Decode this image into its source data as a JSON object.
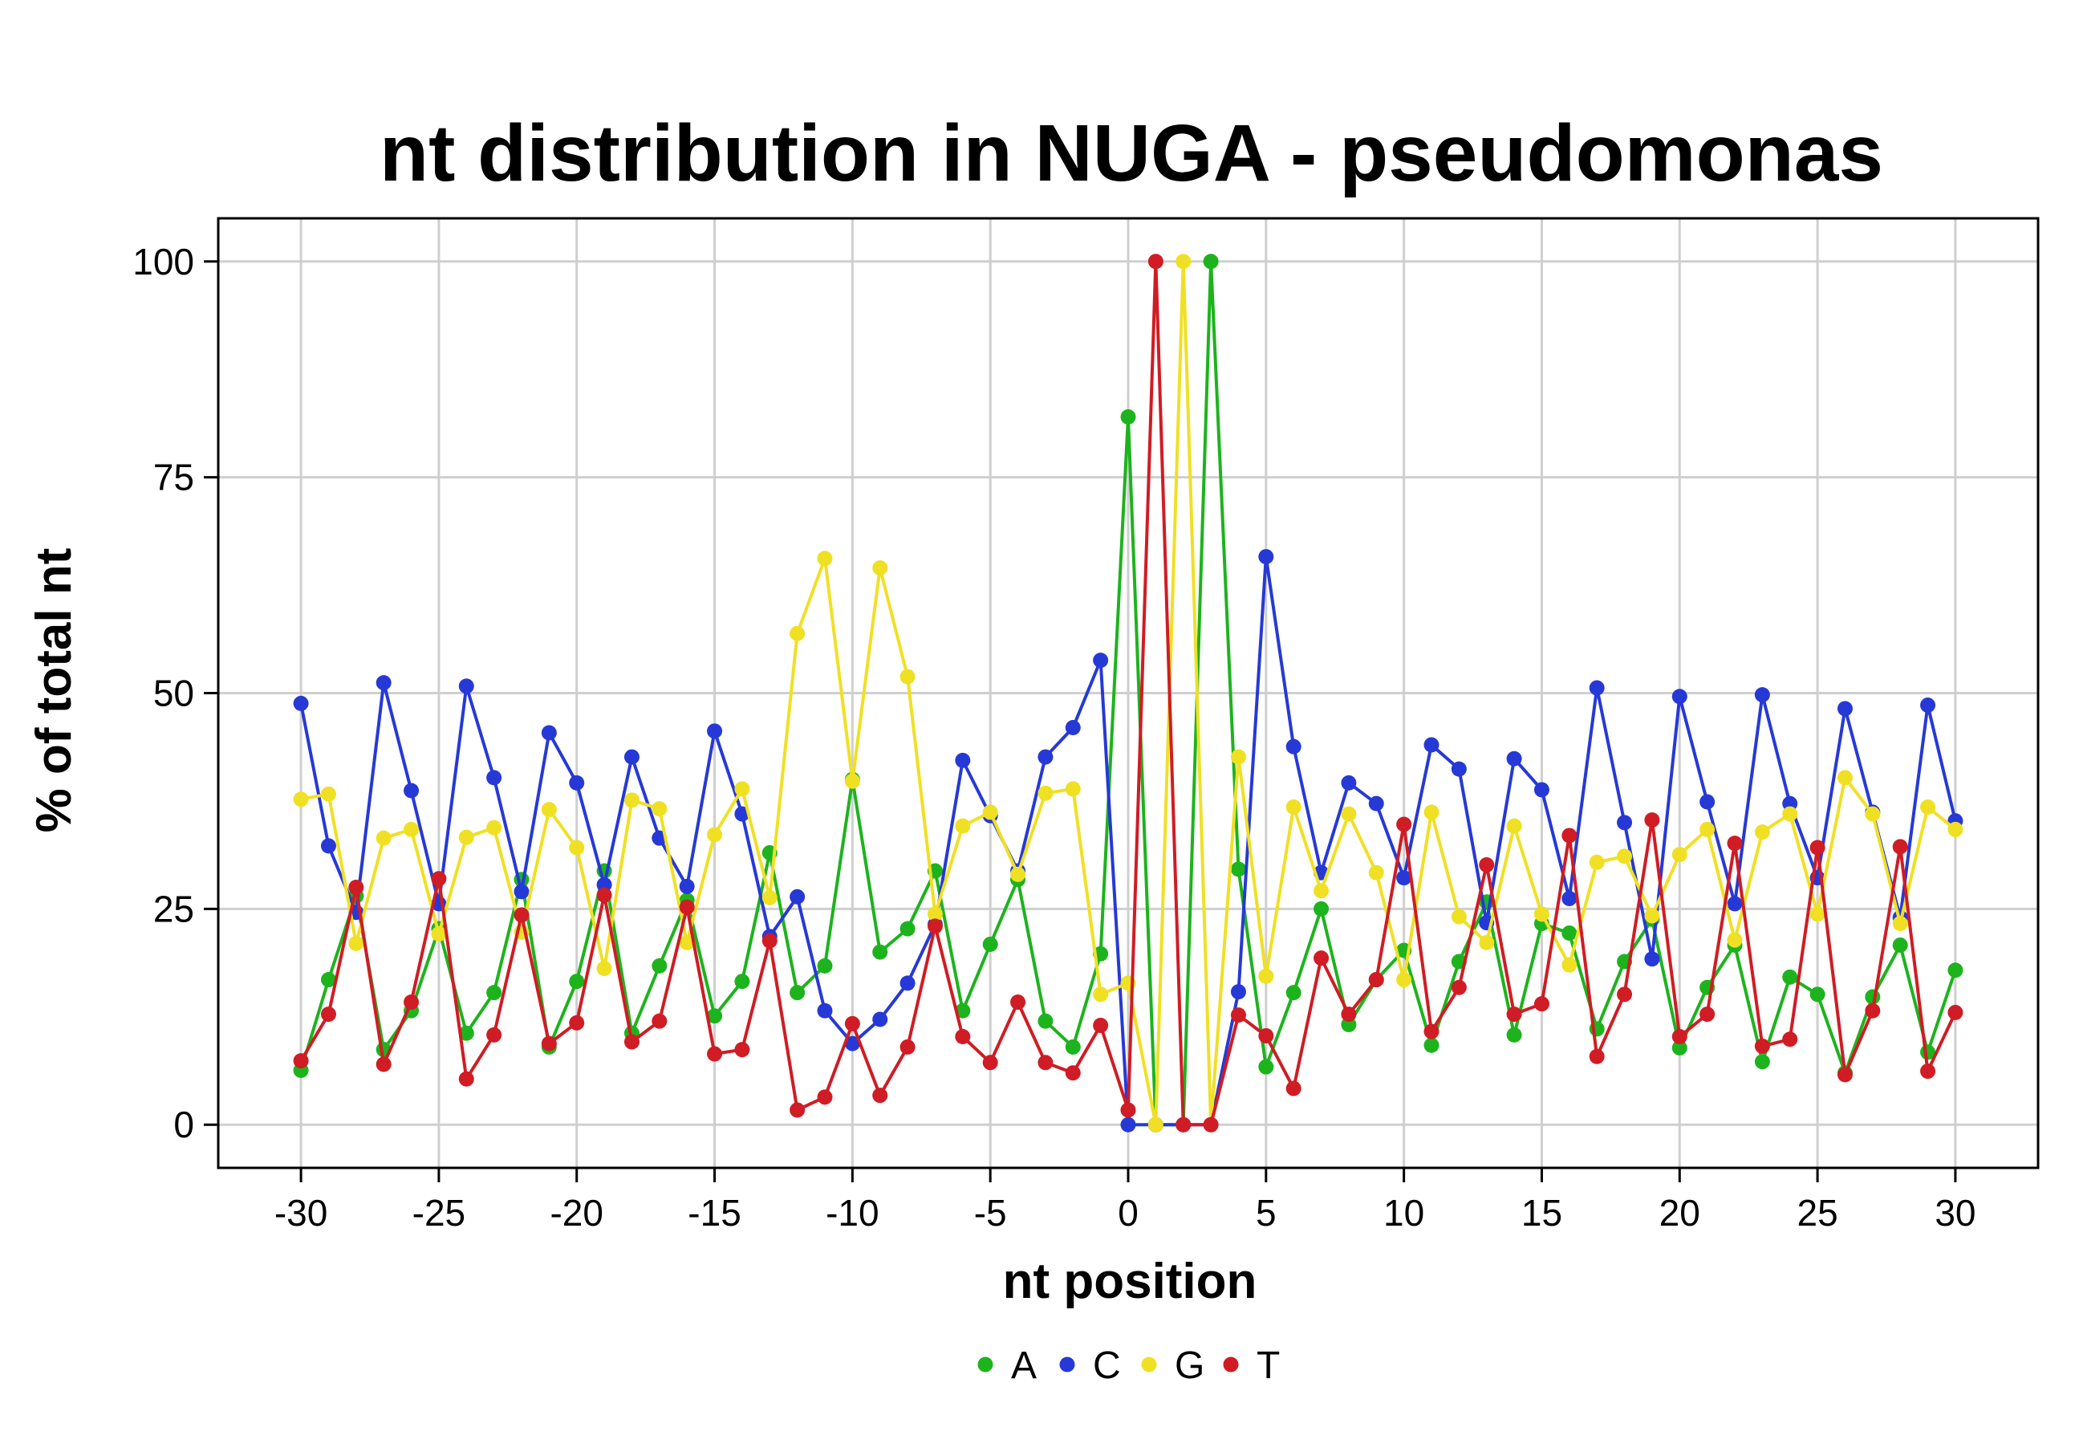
{
  "chart_data": {
    "type": "line",
    "title": "nt distribution in NUGA - pseudomonas",
    "xlabel": "nt position",
    "ylabel": "% of total nt",
    "x": [
      -30,
      -29,
      -28,
      -27,
      -26,
      -25,
      -24,
      -23,
      -22,
      -21,
      -20,
      -19,
      -18,
      -17,
      -16,
      -15,
      -14,
      -13,
      -12,
      -11,
      -10,
      -9,
      -8,
      -7,
      -6,
      -5,
      -4,
      -3,
      -2,
      -1,
      0,
      1,
      2,
      3,
      4,
      5,
      6,
      7,
      8,
      9,
      10,
      11,
      12,
      13,
      14,
      15,
      16,
      17,
      18,
      19,
      20,
      21,
      22,
      23,
      24,
      25,
      26,
      27,
      28,
      29,
      30
    ],
    "xlim": [
      -33,
      33
    ],
    "ylim": [
      -5,
      105
    ],
    "xticks": [
      -30,
      -25,
      -20,
      -15,
      -10,
      -5,
      0,
      5,
      10,
      15,
      20,
      25,
      30
    ],
    "xtick_labels": [
      "-30",
      "-25",
      "-20",
      "-15",
      "-10",
      "-5",
      "0",
      "5",
      "10",
      "15",
      "20",
      "25",
      "30"
    ],
    "yticks": [
      0,
      25,
      50,
      75,
      100
    ],
    "ytick_labels": [
      "0",
      "25",
      "50",
      "75",
      "100"
    ],
    "grid": true,
    "legend_position": "bottom",
    "series": [
      {
        "name": "A",
        "color": "#1db31d",
        "values": [
          6.3,
          16.8,
          26.5,
          8.7,
          13.2,
          22.7,
          10.6,
          15.3,
          28.4,
          9.0,
          16.6,
          29.4,
          10.6,
          18.4,
          26.0,
          12.6,
          16.6,
          31.5,
          15.3,
          18.4,
          40.0,
          20.0,
          22.7,
          29.4,
          13.2,
          20.9,
          28.4,
          12.0,
          9.0,
          19.8,
          82.0,
          0,
          0,
          100,
          29.6,
          6.7,
          15.3,
          25.0,
          11.6,
          16.8,
          20.2,
          9.2,
          18.9,
          25.8,
          10.4,
          23.3,
          22.2,
          11.1,
          18.9,
          23.8,
          8.9,
          15.9,
          20.8,
          7.3,
          17.1,
          15.1,
          6.0,
          14.8,
          20.8,
          8.4,
          17.9
        ]
      },
      {
        "name": "C",
        "color": "#2639d6",
        "values": [
          48.8,
          32.3,
          24.6,
          51.2,
          38.7,
          25.6,
          50.8,
          40.2,
          27.0,
          45.4,
          39.6,
          27.8,
          42.6,
          33.2,
          27.6,
          45.6,
          36.0,
          21.8,
          26.4,
          13.2,
          9.4,
          12.2,
          16.4,
          23.2,
          42.2,
          35.8,
          29.4,
          42.6,
          46.0,
          53.8,
          0,
          0,
          0,
          0,
          15.4,
          65.8,
          43.8,
          29.2,
          39.6,
          37.2,
          28.6,
          44.0,
          41.2,
          23.4,
          42.4,
          38.8,
          26.2,
          50.6,
          35.0,
          19.2,
          49.6,
          37.4,
          25.6,
          49.8,
          37.2,
          28.6,
          48.2,
          36.2,
          24.0,
          48.6,
          35.2
        ]
      },
      {
        "name": "G",
        "color": "#f0e024",
        "values": [
          37.7,
          38.3,
          21.0,
          33.2,
          34.2,
          22.1,
          33.3,
          34.4,
          22.3,
          36.5,
          32.1,
          18.1,
          37.6,
          36.6,
          21.1,
          33.6,
          38.9,
          26.3,
          56.9,
          65.6,
          39.8,
          64.5,
          51.9,
          24.4,
          34.6,
          36.2,
          29.0,
          38.4,
          38.9,
          15.1,
          16.4,
          0,
          100,
          0,
          42.6,
          17.2,
          36.8,
          27.1,
          36.0,
          29.2,
          16.8,
          36.2,
          24.1,
          21.1,
          34.6,
          24.4,
          18.5,
          30.4,
          31.1,
          24.2,
          31.3,
          34.2,
          21.4,
          33.9,
          36.0,
          24.4,
          40.2,
          36.0,
          23.3,
          36.8,
          34.2
        ]
      },
      {
        "name": "T",
        "color": "#d01c24",
        "values": [
          7.4,
          12.8,
          27.5,
          7.0,
          14.2,
          28.5,
          5.3,
          10.4,
          24.3,
          9.4,
          11.8,
          26.6,
          9.6,
          12.0,
          25.2,
          8.2,
          8.7,
          21.3,
          1.7,
          3.2,
          11.7,
          3.4,
          9.0,
          23.0,
          10.2,
          7.2,
          14.2,
          7.2,
          6.0,
          11.5,
          1.7,
          100,
          0,
          0,
          12.7,
          10.3,
          4.2,
          19.3,
          12.8,
          16.8,
          34.8,
          10.8,
          15.9,
          30.1,
          12.8,
          14.0,
          33.5,
          7.9,
          15.1,
          35.3,
          10.2,
          12.8,
          32.6,
          9.1,
          9.9,
          32.1,
          5.8,
          13.2,
          32.2,
          6.2,
          13.0
        ]
      }
    ]
  }
}
